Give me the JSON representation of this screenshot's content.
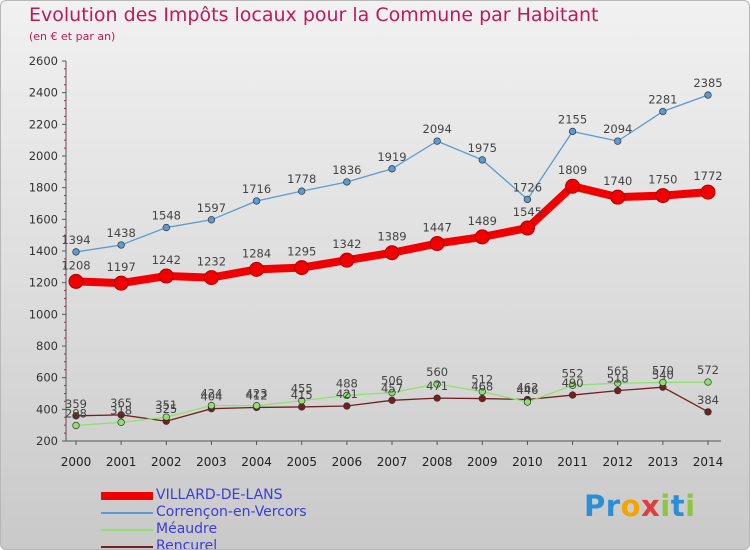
{
  "title": "Evolution des Impôts locaux pour la Commune par Habitant",
  "subtitle": "(en € et par an)",
  "logo": {
    "text": "Proxiti",
    "letters": [
      "P",
      "r",
      "o",
      "x",
      "i",
      "t",
      "i"
    ],
    "colors": [
      "#2a8fd6",
      "#2a8fd6",
      "#f2a500",
      "#e03c3c",
      "#8cc63f",
      "#2a8fd6",
      "#8cc63f"
    ]
  },
  "chart_data": {
    "type": "line",
    "title": "Evolution des Impôts locaux pour la Commune par Habitant",
    "subtitle": "(en € et par an)",
    "x": [
      "2000",
      "2001",
      "2002",
      "2003",
      "2004",
      "2005",
      "2006",
      "2007",
      "2008",
      "2009",
      "2010",
      "2011",
      "2012",
      "2013",
      "2014"
    ],
    "ylim": [
      200,
      2600
    ],
    "yticks": [
      200,
      400,
      600,
      800,
      1000,
      1200,
      1400,
      1600,
      1800,
      2000,
      2200,
      2400,
      2600
    ],
    "grid": false,
    "legend_position": "bottom-left",
    "series": [
      {
        "name": "VILLARD-DE-LANS",
        "color": "#f00000",
        "bold": true,
        "values": [
          1208,
          1197,
          1242,
          1232,
          1284,
          1295,
          1342,
          1389,
          1447,
          1489,
          1545,
          1809,
          1740,
          1750,
          1772
        ]
      },
      {
        "name": "Corrençon-en-Vercors",
        "color": "#5c9bd1",
        "bold": false,
        "values": [
          1394,
          1438,
          1548,
          1597,
          1716,
          1778,
          1836,
          1919,
          2094,
          1975,
          1726,
          2155,
          2094,
          2281,
          2385
        ]
      },
      {
        "name": "Méaudre",
        "color": "#90e070",
        "bold": false,
        "values": [
          298,
          318,
          351,
          424,
          423,
          455,
          488,
          506,
          560,
          512,
          446,
          552,
          565,
          570,
          572
        ]
      },
      {
        "name": "Rencurel",
        "color": "#722020",
        "bold": false,
        "values": [
          359,
          365,
          325,
          404,
          412,
          415,
          421,
          457,
          471,
          468,
          462,
          490,
          518,
          540,
          384
        ]
      }
    ]
  }
}
